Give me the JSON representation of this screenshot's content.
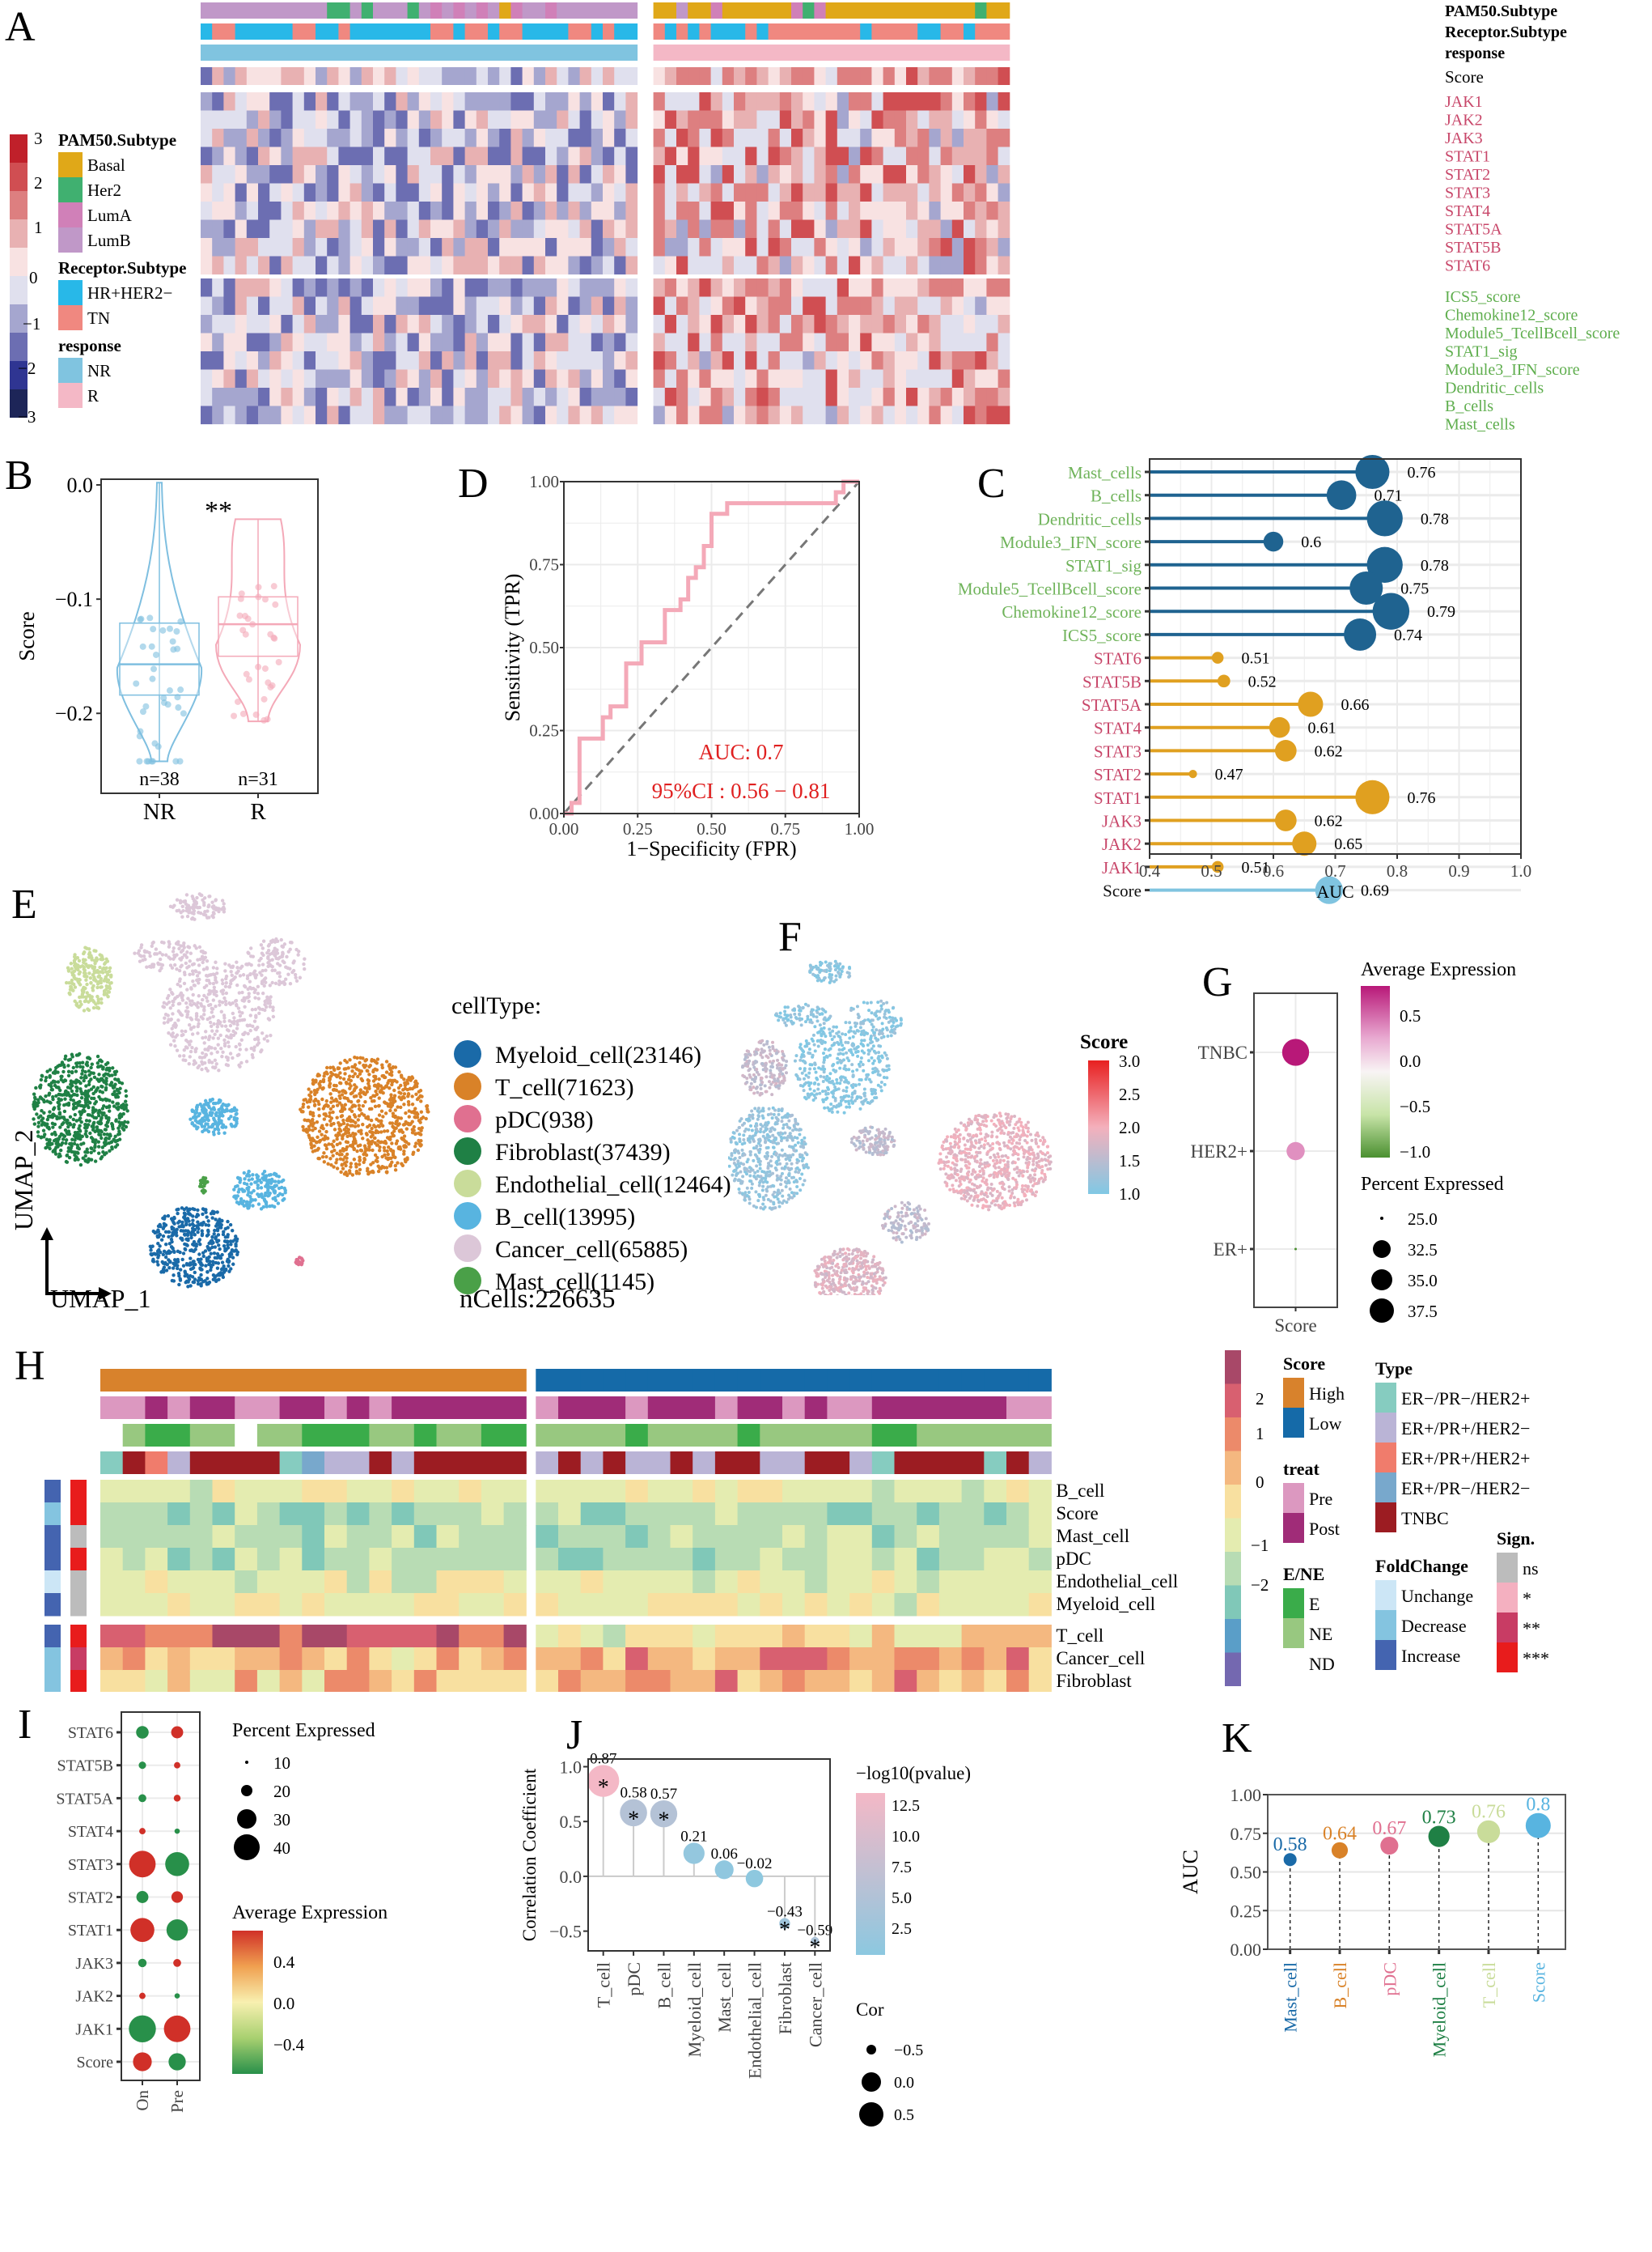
{
  "panels": {
    "A": "A",
    "B": "B",
    "C": "C",
    "D": "D",
    "E": "E",
    "F": "F",
    "G": "G",
    "H": "H",
    "I": "I",
    "J": "J",
    "K": "K"
  },
  "chart_data": [
    {
      "id": "A",
      "type": "heatmap",
      "title": "",
      "annotation_rows": [
        "PAM50.Subtype",
        "Receptor.Subtype",
        "response"
      ],
      "score_row_label": "Score",
      "row_group_1": [
        "JAK1",
        "JAK2",
        "JAK3",
        "STAT1",
        "STAT2",
        "STAT3",
        "STAT4",
        "STAT5A",
        "STAT5B",
        "STAT6"
      ],
      "row_group_2": [
        "ICS5_score",
        "Chemokine12_score",
        "Module5_TcellBcell_score",
        "STAT1_sig",
        "Module3_IFN_score",
        "Dendritic_cells",
        "B_cells",
        "Mast_cells"
      ],
      "row_group_1_color": "#c8476a",
      "row_group_2_color": "#5fae4e",
      "column_groups": [
        {
          "name": "NR",
          "n": 38
        },
        {
          "name": "R",
          "n": 31
        }
      ],
      "color_scale": {
        "ticks": [
          3,
          2,
          1,
          0,
          -1,
          -2,
          -3
        ],
        "colors": [
          "#c0202a",
          "#d04e52",
          "#dd7f80",
          "#e8b1b2",
          "#f8e2e2",
          "#e0e0ee",
          "#a5a6cf",
          "#6c6eb2",
          "#2f3592",
          "#1d2558"
        ]
      },
      "legends": {
        "PAM50.Subtype": [
          {
            "label": "Basal",
            "color": "#e0a818"
          },
          {
            "label": "Her2",
            "color": "#40b070"
          },
          {
            "label": "LumA",
            "color": "#d080b8"
          },
          {
            "label": "LumB",
            "color": "#c098c8"
          }
        ],
        "Receptor.Subtype": [
          {
            "label": "HR+HER2−",
            "color": "#28b8e8"
          },
          {
            "label": "TN",
            "color": "#f08880"
          }
        ],
        "response": [
          {
            "label": "NR",
            "color": "#80c4e0"
          },
          {
            "label": "R",
            "color": "#f4b8c6"
          }
        ]
      }
    },
    {
      "id": "B",
      "type": "violin",
      "categories": [
        "NR",
        "R"
      ],
      "ylabel": "Score",
      "yticks": [
        0.0,
        -0.1,
        -0.2
      ],
      "ylim": [
        -0.27,
        0.005
      ],
      "significance": "**",
      "counts": [
        "n=38",
        "n=31"
      ],
      "colors": [
        "#7fbfe0",
        "#f4a9b8"
      ],
      "box": [
        {
          "min": -0.242,
          "q1": -0.184,
          "median": -0.157,
          "q3": -0.121,
          "max": 0.002
        },
        {
          "min": -0.207,
          "q1": -0.15,
          "median": -0.122,
          "q3": -0.098,
          "max": -0.03
        }
      ]
    },
    {
      "id": "D",
      "type": "line",
      "xlabel": "1−Specificity (FPR)",
      "ylabel": "Sensitivity (TPR)",
      "xlim": [
        0,
        1
      ],
      "ylim": [
        0,
        1
      ],
      "xticks": [
        "0.00",
        "0.25",
        "0.50",
        "0.75",
        "1.00"
      ],
      "yticks": [
        "0.00",
        "0.25",
        "0.50",
        "0.75",
        "1.00"
      ],
      "auc_text": "AUC:  0.7",
      "ci_text": "95%CI : 0.56 − 0.81",
      "roc_points": [
        [
          0,
          0
        ],
        [
          0.026,
          0
        ],
        [
          0.026,
          0.032
        ],
        [
          0.053,
          0.032
        ],
        [
          0.053,
          0.226
        ],
        [
          0.132,
          0.226
        ],
        [
          0.132,
          0.29
        ],
        [
          0.158,
          0.29
        ],
        [
          0.158,
          0.323
        ],
        [
          0.211,
          0.323
        ],
        [
          0.211,
          0.452
        ],
        [
          0.263,
          0.452
        ],
        [
          0.263,
          0.516
        ],
        [
          0.342,
          0.516
        ],
        [
          0.342,
          0.613
        ],
        [
          0.395,
          0.613
        ],
        [
          0.395,
          0.645
        ],
        [
          0.421,
          0.645
        ],
        [
          0.421,
          0.71
        ],
        [
          0.447,
          0.71
        ],
        [
          0.447,
          0.742
        ],
        [
          0.474,
          0.742
        ],
        [
          0.474,
          0.806
        ],
        [
          0.5,
          0.806
        ],
        [
          0.5,
          0.903
        ],
        [
          0.553,
          0.903
        ],
        [
          0.553,
          0.935
        ],
        [
          0.921,
          0.935
        ],
        [
          0.921,
          0.968
        ],
        [
          0.947,
          0.968
        ],
        [
          0.947,
          1
        ],
        [
          1,
          1
        ]
      ],
      "roc_color": "#f4a9b8"
    },
    {
      "id": "C",
      "type": "lollipop",
      "xlabel": "AUC",
      "xlim": [
        0.4,
        1.0
      ],
      "xticks": [
        "0.4",
        "0.5",
        "0.6",
        "0.7",
        "0.8",
        "0.9",
        "1.0"
      ],
      "items": [
        {
          "label": "Mast_cells",
          "value": 0.76,
          "group": "sig"
        },
        {
          "label": "B_cells",
          "value": 0.71,
          "group": "sig"
        },
        {
          "label": "Dendritic_cells",
          "value": 0.78,
          "group": "sig"
        },
        {
          "label": "Module3_IFN_score",
          "value": 0.6,
          "group": "sig"
        },
        {
          "label": "STAT1_sig",
          "value": 0.78,
          "group": "sig"
        },
        {
          "label": "Module5_TcellBcell_score",
          "value": 0.75,
          "group": "sig"
        },
        {
          "label": "Chemokine12_score",
          "value": 0.79,
          "group": "sig"
        },
        {
          "label": "ICS5_score",
          "value": 0.74,
          "group": "sig"
        },
        {
          "label": "STAT6",
          "value": 0.51,
          "group": "gene"
        },
        {
          "label": "STAT5B",
          "value": 0.52,
          "group": "gene"
        },
        {
          "label": "STAT5A",
          "value": 0.66,
          "group": "gene"
        },
        {
          "label": "STAT4",
          "value": 0.61,
          "group": "gene"
        },
        {
          "label": "STAT3",
          "value": 0.62,
          "group": "gene"
        },
        {
          "label": "STAT2",
          "value": 0.47,
          "group": "gene"
        },
        {
          "label": "STAT1",
          "value": 0.76,
          "group": "gene"
        },
        {
          "label": "JAK3",
          "value": 0.62,
          "group": "gene"
        },
        {
          "label": "JAK2",
          "value": 0.65,
          "group": "gene"
        },
        {
          "label": "JAK1",
          "value": 0.51,
          "group": "gene"
        },
        {
          "label": "Score",
          "value": 0.69,
          "group": "score"
        }
      ],
      "group_colors": {
        "sig": "#1f6390",
        "gene": "#e0a020",
        "score": "#80c4e0"
      },
      "label_colors": {
        "sig": "#6fb35a",
        "gene": "#c8476a",
        "score": "#111111"
      }
    },
    {
      "id": "E",
      "type": "scatter",
      "xlabel": "UMAP_1",
      "ylabel": "UMAP_2",
      "legend_title": "cellType:",
      "legend": [
        {
          "label": "Myeloid_cell(23146)",
          "color": "#1a6aa8"
        },
        {
          "label": "T_cell(71623)",
          "color": "#d98228"
        },
        {
          "label": "pDC(938)",
          "color": "#e07090"
        },
        {
          "label": "Fibroblast(37439)",
          "color": "#1f8045"
        },
        {
          "label": "Endothelial_cell(12464)",
          "color": "#c9dc9a"
        },
        {
          "label": "B_cell(13995)",
          "color": "#58b4e0"
        },
        {
          "label": "Cancer_cell(65885)",
          "color": "#dcc7d8"
        },
        {
          "label": "Mast_cell(1145)",
          "color": "#4aa048"
        }
      ],
      "total": "nCells:226635"
    },
    {
      "id": "F",
      "type": "scatter",
      "legend_title": "Score",
      "colorbar_ticks": [
        "3.0",
        "2.5",
        "2.0",
        "1.5",
        "1.0"
      ],
      "colorbar_range": [
        1.0,
        3.0
      ],
      "colors": [
        "#e82020",
        "#f4b0bc",
        "#80c8e4"
      ]
    },
    {
      "id": "G",
      "type": "scatter",
      "xlabel": "Score",
      "categories": [
        "TNBC",
        "HER2+",
        "ER+"
      ],
      "points": [
        {
          "label": "TNBC",
          "avg_expression": 0.72,
          "percent_expressed": 38.5,
          "color": "#b81878"
        },
        {
          "label": "HER2+",
          "avg_expression": 0.28,
          "percent_expressed": 33.5,
          "color": "#e090c0"
        },
        {
          "label": "ER+",
          "avg_expression": -0.9,
          "percent_expressed": 24.5,
          "color": "#4a9030"
        }
      ],
      "color_legend_title": "Average Expression",
      "color_ticks": [
        "0.5",
        "0.0",
        "−0.5",
        "−1.0"
      ],
      "size_legend_title": "Percent Expressed",
      "size_ticks": [
        "25.0",
        "32.5",
        "35.0",
        "37.5"
      ]
    },
    {
      "id": "H",
      "type": "heatmap",
      "row_group_1": [
        "B_cell",
        "Score",
        "Mast_cell",
        "pDC",
        "Endothelial_cell",
        "Myeloid_cell"
      ],
      "row_group_2": [
        "T_cell",
        "Cancer_cell",
        "Fibroblast"
      ],
      "row_foldchange": [
        "Increase",
        "Decrease",
        "Increase",
        "Increase",
        "Unchange",
        "Increase",
        "Increase",
        "Decrease",
        "Decrease"
      ],
      "row_sign": [
        "***",
        "***",
        "ns",
        "***",
        "ns",
        "ns",
        "***",
        "**",
        "***"
      ],
      "color_scale": {
        "ticks": [
          "2",
          "1",
          "0",
          "−1",
          "−2"
        ],
        "colors": [
          "#a84868",
          "#d86070",
          "#ec8a6a",
          "#f4b880",
          "#f8e0a0",
          "#e4ecb0",
          "#b8dcb4",
          "#80c8b8",
          "#5a9ec8",
          "#7468b0"
        ]
      },
      "legends": {
        "Score": [
          {
            "label": "High",
            "color": "#d8822c"
          },
          {
            "label": "Low",
            "color": "#156aa8"
          }
        ],
        "treat": [
          {
            "label": "Pre",
            "color": "#dc98c0"
          },
          {
            "label": "Post",
            "color": "#a02c78"
          }
        ],
        "E/NE": [
          {
            "label": "E",
            "color": "#3aac4a"
          },
          {
            "label": "NE",
            "color": "#98c880"
          },
          {
            "label": "ND",
            "color": "#ffffff"
          }
        ],
        "Type": [
          {
            "label": "ER−/PR−/HER2+",
            "color": "#86ccc0"
          },
          {
            "label": "ER+/PR+/HER2−",
            "color": "#bab4d6"
          },
          {
            "label": "ER+/PR+/HER2+",
            "color": "#f07c6c"
          },
          {
            "label": "ER+/PR−/HER2−",
            "color": "#78a8cc"
          },
          {
            "label": "TNBC",
            "color": "#9c1c22"
          }
        ],
        "FoldChange": [
          {
            "label": "Unchange",
            "color": "#cce6f6"
          },
          {
            "label": "Decrease",
            "color": "#84c4e0"
          },
          {
            "label": "Increase",
            "color": "#4464b0"
          }
        ],
        "Sign.": [
          {
            "label": "ns",
            "color": "#bcbcbc"
          },
          {
            "label": "*",
            "color": "#f4b0c0"
          },
          {
            "label": "**",
            "color": "#c83c64"
          },
          {
            "label": "***",
            "color": "#e81c1c"
          }
        ]
      }
    },
    {
      "id": "I",
      "type": "scatter",
      "categories": [
        "On",
        "Pre"
      ],
      "genes": [
        "STAT6",
        "STAT5B",
        "STAT5A",
        "STAT4",
        "STAT3",
        "STAT2",
        "STAT1",
        "JAK3",
        "JAK2",
        "JAK1",
        "Score"
      ],
      "points": [
        {
          "gene": "STAT6",
          "On": {
            "pct": 18,
            "avg": -0.5
          },
          "Pre": {
            "pct": 17,
            "avg": 0.5
          }
        },
        {
          "gene": "STAT5B",
          "On": {
            "pct": 8,
            "avg": -0.5
          },
          "Pre": {
            "pct": 6,
            "avg": 0.5
          }
        },
        {
          "gene": "STAT5A",
          "On": {
            "pct": 9,
            "avg": -0.5
          },
          "Pre": {
            "pct": 7,
            "avg": 0.5
          }
        },
        {
          "gene": "STAT4",
          "On": {
            "pct": 6,
            "avg": 0.5
          },
          "Pre": {
            "pct": 4,
            "avg": -0.5
          }
        },
        {
          "gene": "STAT3",
          "On": {
            "pct": 45,
            "avg": 0.5
          },
          "Pre": {
            "pct": 40,
            "avg": -0.5
          }
        },
        {
          "gene": "STAT2",
          "On": {
            "pct": 17,
            "avg": -0.5
          },
          "Pre": {
            "pct": 16,
            "avg": 0.5
          }
        },
        {
          "gene": "STAT1",
          "On": {
            "pct": 40,
            "avg": 0.5
          },
          "Pre": {
            "pct": 35,
            "avg": -0.5
          }
        },
        {
          "gene": "JAK3",
          "On": {
            "pct": 10,
            "avg": -0.5
          },
          "Pre": {
            "pct": 9,
            "avg": 0.5
          }
        },
        {
          "gene": "JAK2",
          "On": {
            "pct": 6,
            "avg": 0.5
          },
          "Pre": {
            "pct": 4,
            "avg": -0.5
          }
        },
        {
          "gene": "JAK1",
          "On": {
            "pct": 46,
            "avg": -0.5
          },
          "Pre": {
            "pct": 45,
            "avg": 0.5
          }
        },
        {
          "gene": "Score",
          "On": {
            "pct": 30,
            "avg": 0.5
          },
          "Pre": {
            "pct": 27,
            "avg": -0.5
          }
        }
      ],
      "size_legend_title": "Percent Expressed",
      "size_ticks": [
        "10",
        "20",
        "30",
        "40"
      ],
      "color_legend_title": "Average Expression",
      "color_ticks": [
        "0.4",
        "0.0",
        "−0.4"
      ]
    },
    {
      "id": "J",
      "type": "lollipop",
      "ylabel": "Correlation Coefficient",
      "ylim": [
        -0.68,
        1.07
      ],
      "yticks": [
        "1.0",
        "0.5",
        "0.0",
        "−0.5"
      ],
      "items": [
        {
          "label": "T_cell",
          "value": 0.87,
          "value_text": "0.87",
          "neglog10p": 13,
          "sig": true
        },
        {
          "label": "pDC",
          "value": 0.58,
          "value_text": "0.58",
          "neglog10p": 5,
          "sig": true
        },
        {
          "label": "B_cell",
          "value": 0.57,
          "value_text": "0.57",
          "neglog10p": 5,
          "sig": true
        },
        {
          "label": "Myeloid_cell",
          "value": 0.21,
          "value_text": "0.21",
          "neglog10p": 1,
          "sig": false
        },
        {
          "label": "Mast_cell",
          "value": 0.06,
          "value_text": "0.06",
          "neglog10p": 0.5,
          "sig": false
        },
        {
          "label": "Endothelial_cell",
          "value": -0.02,
          "value_text": "−0.02",
          "neglog10p": 0.3,
          "sig": false
        },
        {
          "label": "Fibroblast",
          "value": -0.43,
          "value_text": "−0.43",
          "neglog10p": 2.5,
          "sig": true
        },
        {
          "label": "Cancer_cell",
          "value": -0.59,
          "value_text": "−0.59",
          "neglog10p": 4,
          "sig": true
        }
      ],
      "color_legend_title": "−log10(pvalue)",
      "color_ticks": [
        "12.5",
        "10.0",
        "7.5",
        "5.0",
        "2.5"
      ],
      "size_legend_title": "Cor",
      "size_ticks": [
        "−0.5",
        "0.0",
        "0.5"
      ]
    },
    {
      "id": "K",
      "type": "lollipop",
      "ylabel": "AUC",
      "ylim": [
        0,
        1
      ],
      "yticks": [
        "1.00",
        "0.75",
        "0.50",
        "0.25",
        "0.00"
      ],
      "items": [
        {
          "label": "Mast_cell",
          "value": 0.58,
          "value_text": "0.58",
          "color": "#1a6aa8"
        },
        {
          "label": "B_cell",
          "value": 0.64,
          "value_text": "0.64",
          "color": "#d98228"
        },
        {
          "label": "pDC",
          "value": 0.67,
          "value_text": "0.67",
          "color": "#e07090"
        },
        {
          "label": "Myeloid_cell",
          "value": 0.73,
          "value_text": "0.73",
          "color": "#1f8045"
        },
        {
          "label": "T_cell",
          "value": 0.76,
          "value_text": "0.76",
          "color": "#c9dc9a"
        },
        {
          "label": "Score",
          "value": 0.8,
          "value_text": "0.8",
          "color": "#58b4e0"
        }
      ]
    }
  ]
}
